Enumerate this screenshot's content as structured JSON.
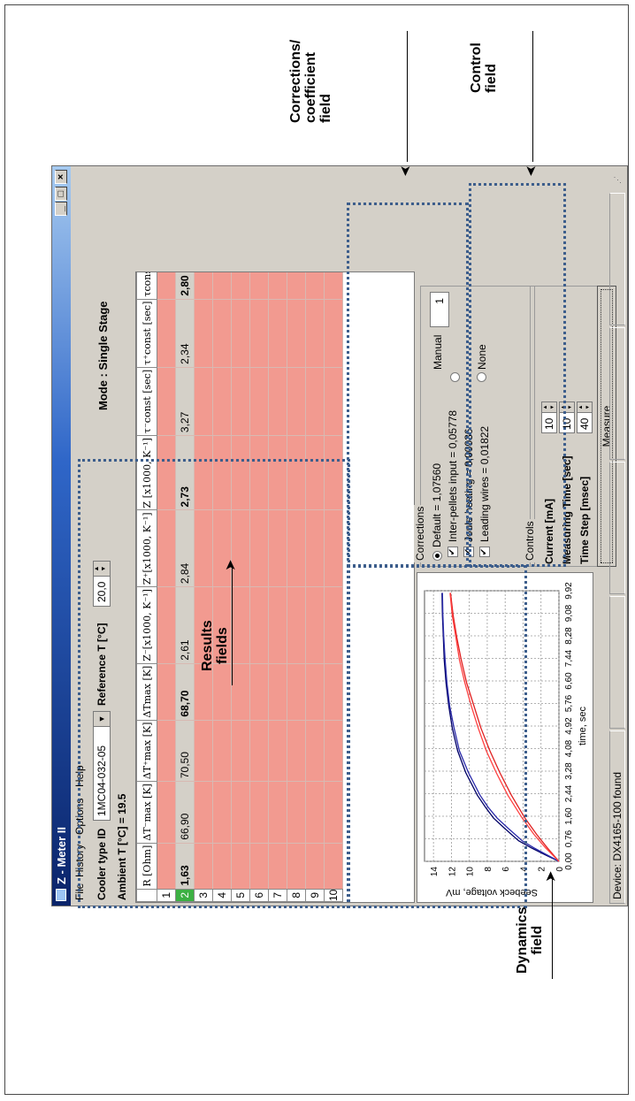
{
  "window": {
    "title": "Z - Meter II",
    "menu": [
      "File",
      "History",
      "Options",
      "Help"
    ],
    "menu_underline": [
      "F",
      "H",
      "O",
      "H"
    ]
  },
  "toolbar": {
    "cooler_type_label": "Cooler type ID",
    "cooler_type_value": "1MC04-032-05",
    "reference_label": "Reference T [°C]",
    "reference_value": "20,0",
    "mode_label": "Mode : Single Stage",
    "ambient_label": "Ambient T [°C] = 19.5"
  },
  "table": {
    "headers": [
      "R [Ohm]",
      "ΔT⁻max [K]",
      "ΔT⁺max [K]",
      "ΔTmax [K]",
      "Z⁻[x1000, K⁻¹]",
      "Z⁺[x1000, K⁻¹]",
      "Z [x1000, K⁻¹]",
      "τ⁻const [sec]",
      "τ⁺const [sec]",
      "τconst [sec]"
    ],
    "row_numbers": [
      "1",
      "2",
      "3",
      "4",
      "5",
      "6",
      "7",
      "8",
      "9",
      "10"
    ],
    "selected_row": 1,
    "selected_values": [
      "1,63",
      "66,90",
      "70,50",
      "68,70",
      "2,61",
      "2,84",
      "2,73",
      "3,27",
      "2,34",
      "2,80"
    ],
    "bold_columns": [
      0,
      3,
      6,
      9
    ]
  },
  "chart_data": {
    "type": "line",
    "title": "",
    "xlabel": "time, sec",
    "ylabel": "Seebeck voltage, mV",
    "xlim": [
      0,
      10
    ],
    "ylim": [
      0,
      15
    ],
    "x_ticks": [
      "0,00",
      "0,76",
      "1,60",
      "2,44",
      "3,28",
      "4,08",
      "4,92",
      "5,76",
      "6,60",
      "7,44",
      "8,28",
      "9,08",
      "9,92"
    ],
    "y_ticks": [
      "0",
      "2",
      "4",
      "6",
      "8",
      "10",
      "12",
      "14"
    ],
    "grid": true,
    "series": [
      {
        "color": "#000066",
        "x": [
          0,
          0.25,
          0.5,
          0.76,
          1.2,
          1.6,
          2.0,
          2.44,
          3.28,
          4.08,
          4.92,
          5.76,
          6.6,
          7.44,
          8.28,
          9.08,
          9.92
        ],
        "y": [
          0,
          1.6,
          3.1,
          4.5,
          6.0,
          7.3,
          8.2,
          9.1,
          10.4,
          11.3,
          11.9,
          12.3,
          12.6,
          12.8,
          12.9,
          13.0,
          13.05
        ]
      },
      {
        "color": "#2a2aaa",
        "x": [
          0,
          0.25,
          0.5,
          0.76,
          1.2,
          1.6,
          2.0,
          2.44,
          3.28,
          4.08,
          4.92,
          5.76,
          6.6,
          7.44,
          8.28,
          9.08,
          9.92
        ],
        "y": [
          0,
          1.4,
          2.8,
          4.1,
          5.6,
          6.9,
          7.9,
          8.8,
          10.1,
          11.1,
          11.7,
          12.2,
          12.5,
          12.7,
          12.85,
          12.95,
          13.0
        ]
      },
      {
        "color": "#e02020",
        "x": [
          0,
          0.5,
          1.0,
          1.6,
          2.44,
          3.28,
          4.08,
          4.92,
          5.76,
          6.6,
          7.44,
          8.28,
          9.08,
          9.92
        ],
        "y": [
          0,
          1.3,
          2.5,
          3.8,
          5.3,
          6.6,
          7.7,
          8.7,
          9.5,
          10.3,
          10.9,
          11.4,
          11.8,
          12.1
        ]
      },
      {
        "color": "#ff4040",
        "x": [
          0,
          0.5,
          1.0,
          1.6,
          2.44,
          3.28,
          4.08,
          4.92,
          5.76,
          6.6,
          7.44,
          8.28,
          9.08,
          9.92
        ],
        "y": [
          0,
          1.5,
          2.8,
          4.1,
          5.7,
          7.0,
          8.1,
          9.0,
          9.8,
          10.5,
          11.1,
          11.5,
          11.9,
          12.15
        ]
      }
    ]
  },
  "corrections": {
    "group_label": "Corrections",
    "default_label": "Default = 1,07560",
    "items": [
      "Inter-pellets input = 0,05778",
      "Joule heating = 0,00036",
      "Leading wires = 0,01822"
    ],
    "manual_label": "Manual",
    "manual_value": "1",
    "none_label": "None"
  },
  "controls": {
    "group_label": "Controls",
    "current_label": "Current [mA]",
    "current_value": "10",
    "measuring_time_label": "Measuring Time [sec]",
    "measuring_time_value": "10",
    "time_step_label": "Time Step [msec]",
    "time_step_value": "40",
    "measure_button": "Measure"
  },
  "status": {
    "device": "Device: DX4165-100 found"
  },
  "annotations": {
    "results": [
      "Results",
      "fields"
    ],
    "dynamics": [
      "Dynamics",
      "field"
    ],
    "corrections": [
      "Corrections/",
      "coefficient",
      "field"
    ],
    "control": [
      "Control",
      "field"
    ]
  }
}
